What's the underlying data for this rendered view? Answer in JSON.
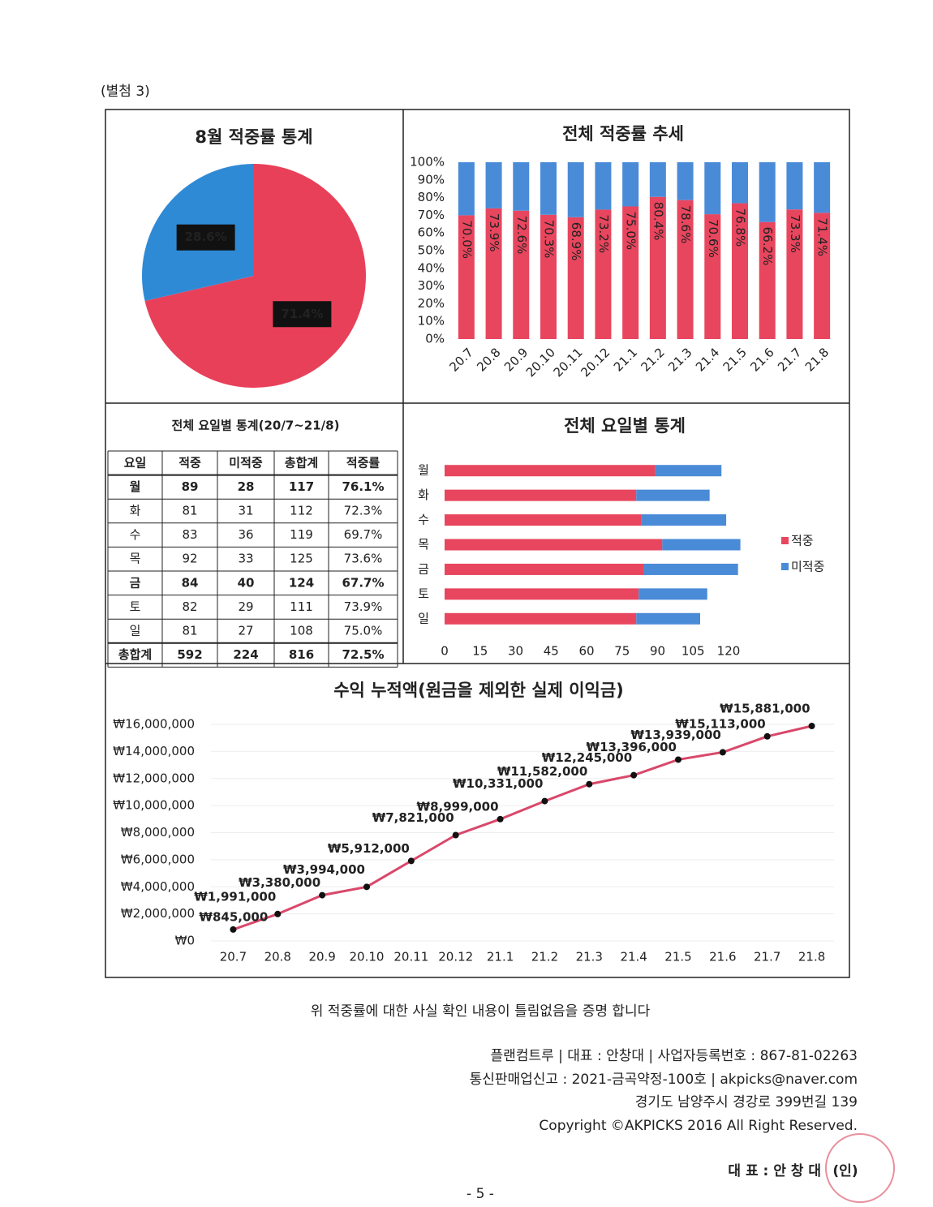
{
  "document": {
    "attachment": "(별첨 3)",
    "statement": "위 적중률에 대한 사실 확인 내용이 틀림없음을 증명 합니다",
    "footer": [
      "플랜컴트루 | 대표 : 안창대 | 사업자등록번호 : 867-81-02263",
      "통신판매업신고 : 2021-금곡약정-100호 | akpicks@naver.com",
      "경기도 남양주시 경강로 399번길 139",
      "Copyright ©AKPICKS 2016 All Right Reserved."
    ],
    "signature": "대 표 : 안 창 대",
    "seal": "(인)",
    "page": "- 5 -"
  },
  "table": {
    "title": "전체 요일별 통계(20/7~21/8)",
    "header": [
      "요일",
      "적중",
      "미적중",
      "총합계",
      "적중률"
    ],
    "rows": [
      [
        "월",
        "89",
        "28",
        "117",
        "76.1%"
      ],
      [
        "화",
        "81",
        "31",
        "112",
        "72.3%"
      ],
      [
        "수",
        "83",
        "36",
        "119",
        "69.7%"
      ],
      [
        "목",
        "92",
        "33",
        "125",
        "73.6%"
      ],
      [
        "금",
        "84",
        "40",
        "124",
        "67.7%"
      ],
      [
        "토",
        "82",
        "29",
        "111",
        "73.9%"
      ],
      [
        "일",
        "81",
        "27",
        "108",
        "75.0%"
      ],
      [
        "총합계",
        "592",
        "224",
        "816",
        "72.5%"
      ]
    ]
  },
  "chart_data": [
    {
      "type": "pie",
      "title": "8월 적중률 통계",
      "values": [
        71.4,
        28.6
      ],
      "value_labels": [
        "71.4%",
        "28.6%"
      ],
      "colors": [
        "#e9405a",
        "#2f8ad6"
      ]
    },
    {
      "type": "stacked-bar",
      "title": "전체 적중률 추세",
      "categories": [
        "20.7",
        "20.8",
        "20.9",
        "20.10",
        "20.11",
        "20.12",
        "21.1",
        "21.2",
        "21.3",
        "21.4",
        "21.5",
        "21.6",
        "21.7",
        "21.8"
      ],
      "series": [
        {
          "color": "#e8465e",
          "values": [
            70.0,
            73.9,
            72.6,
            70.3,
            68.9,
            73.2,
            75.0,
            80.4,
            78.6,
            70.6,
            76.8,
            66.2,
            73.3,
            71.4
          ],
          "value_labels": [
            "70.0%",
            "73.9%",
            "72.6%",
            "70.3%",
            "68.9%",
            "73.2%",
            "75.0%",
            "80.4%",
            "78.6%",
            "70.6%",
            "76.8%",
            "66.2%",
            "73.3%",
            "71.4%"
          ]
        },
        {
          "color": "#4a8bd8",
          "values": [
            30.0,
            26.1,
            27.4,
            29.7,
            31.1,
            26.8,
            25.0,
            19.6,
            21.4,
            29.4,
            23.2,
            33.8,
            26.7,
            28.6
          ]
        }
      ],
      "ylim": [
        0,
        100
      ],
      "yticks": [
        {
          "value": 0,
          "label": "0%"
        },
        {
          "value": 10,
          "label": "10%"
        },
        {
          "value": 20,
          "label": "20%"
        },
        {
          "value": 30,
          "label": "30%"
        },
        {
          "value": 40,
          "label": "40%"
        },
        {
          "value": 50,
          "label": "50%"
        },
        {
          "value": 60,
          "label": "60%"
        },
        {
          "value": 70,
          "label": "70%"
        },
        {
          "value": 80,
          "label": "80%"
        },
        {
          "value": 90,
          "label": "90%"
        },
        {
          "value": 100,
          "label": "100%"
        }
      ]
    },
    {
      "type": "stacked-hbar",
      "title": "전체 요일별 통계",
      "categories": [
        "월",
        "화",
        "수",
        "목",
        "금",
        "토",
        "일"
      ],
      "series": [
        {
          "name": "적중",
          "color": "#e8465e",
          "values": [
            89,
            81,
            83,
            92,
            84,
            82,
            81
          ]
        },
        {
          "name": "미적중",
          "color": "#4a8bd8",
          "values": [
            28,
            31,
            36,
            33,
            40,
            29,
            27
          ]
        }
      ],
      "xlim": [
        0,
        120
      ],
      "xticks": [
        0,
        15,
        30,
        45,
        60,
        75,
        90,
        105,
        120
      ],
      "legend": "right"
    },
    {
      "type": "line",
      "title": "수익 누적액(원금을 제외한 실제 이익금)",
      "categories": [
        "20.7",
        "20.8",
        "20.9",
        "20.10",
        "20.11",
        "20.12",
        "21.1",
        "21.2",
        "21.3",
        "21.4",
        "21.5",
        "21.6",
        "21.7",
        "21.8"
      ],
      "values": [
        845000,
        1991000,
        3380000,
        3994000,
        5912000,
        7821000,
        8999000,
        10331000,
        11582000,
        12245000,
        13396000,
        13939000,
        15113000,
        15881000
      ],
      "value_labels": [
        "₩845,000",
        "₩1,991,000",
        "₩3,380,000",
        "₩3,994,000",
        "₩5,912,000",
        "₩7,821,000",
        "₩8,999,000",
        "₩10,331,000",
        "₩11,582,000",
        "₩12,245,000",
        "₩13,396,000",
        "₩13,939,000",
        "₩15,113,000",
        "₩15,881,000"
      ],
      "color": "#d9486a",
      "ylim": [
        0,
        16000000
      ],
      "grid": true,
      "yticks": [
        {
          "value": 0,
          "label": "₩0"
        },
        {
          "value": 2000000,
          "label": "₩2,000,000"
        },
        {
          "value": 4000000,
          "label": "₩4,000,000"
        },
        {
          "value": 6000000,
          "label": "₩6,000,000"
        },
        {
          "value": 8000000,
          "label": "₩8,000,000"
        },
        {
          "value": 10000000,
          "label": "₩10,000,000"
        },
        {
          "value": 12000000,
          "label": "₩12,000,000"
        },
        {
          "value": 14000000,
          "label": "₩14,000,000"
        },
        {
          "value": 16000000,
          "label": "₩16,000,000"
        }
      ]
    }
  ]
}
